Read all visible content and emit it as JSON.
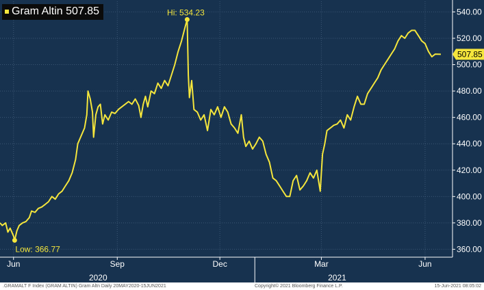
{
  "colors": {
    "background": "#17324f",
    "line": "#f5e63c",
    "grid": "#3b5674",
    "legend_bg": "#0b0b0b"
  },
  "chart_data": {
    "type": "line",
    "title": "",
    "xlabel": "",
    "ylabel": "",
    "ylim": [
      354,
      548
    ],
    "y_ticks": [
      "360.00",
      "380.00",
      "400.00",
      "420.00",
      "440.00",
      "460.00",
      "480.00",
      "500.00",
      "520.00",
      "540.00"
    ],
    "y_tick_values": [
      360,
      380,
      400,
      420,
      440,
      460,
      480,
      500,
      520,
      540
    ],
    "x_ticks": [
      {
        "label": "Jun",
        "date": "2020-06-01"
      },
      {
        "label": "Sep",
        "date": "2020-09-01"
      },
      {
        "label": "Dec",
        "date": "2020-12-01"
      },
      {
        "label": "Mar",
        "date": "2021-03-01"
      },
      {
        "label": "Jun",
        "date": "2021-06-01"
      }
    ],
    "year_labels": [
      {
        "label": "2020",
        "date": "2020-08-15"
      },
      {
        "label": "2021",
        "date": "2021-03-15"
      }
    ],
    "grid": true,
    "legend": "top-left",
    "series": [
      {
        "name": "Gram Altin",
        "last_value": "507.85",
        "points": [
          [
            "2020-05-20",
            380
          ],
          [
            "2020-05-22",
            378
          ],
          [
            "2020-05-25",
            380
          ],
          [
            "2020-05-27",
            373
          ],
          [
            "2020-05-29",
            376
          ],
          [
            "2020-06-01",
            370
          ],
          [
            "2020-06-02",
            366.77
          ],
          [
            "2020-06-04",
            374
          ],
          [
            "2020-06-06",
            378
          ],
          [
            "2020-06-09",
            380
          ],
          [
            "2020-06-12",
            381
          ],
          [
            "2020-06-15",
            384
          ],
          [
            "2020-06-17",
            389
          ],
          [
            "2020-06-20",
            388
          ],
          [
            "2020-06-23",
            391
          ],
          [
            "2020-06-26",
            392
          ],
          [
            "2020-06-29",
            394
          ],
          [
            "2020-07-02",
            396
          ],
          [
            "2020-07-05",
            400
          ],
          [
            "2020-07-08",
            398
          ],
          [
            "2020-07-11",
            402
          ],
          [
            "2020-07-14",
            404
          ],
          [
            "2020-07-17",
            408
          ],
          [
            "2020-07-20",
            412
          ],
          [
            "2020-07-23",
            418
          ],
          [
            "2020-07-26",
            428
          ],
          [
            "2020-07-28",
            440
          ],
          [
            "2020-07-30",
            444
          ],
          [
            "2020-08-01",
            448
          ],
          [
            "2020-08-03",
            452
          ],
          [
            "2020-08-05",
            462
          ],
          [
            "2020-08-06",
            480
          ],
          [
            "2020-08-08",
            474
          ],
          [
            "2020-08-10",
            464
          ],
          [
            "2020-08-11",
            445
          ],
          [
            "2020-08-13",
            462
          ],
          [
            "2020-08-15",
            468
          ],
          [
            "2020-08-17",
            470
          ],
          [
            "2020-08-19",
            455
          ],
          [
            "2020-08-21",
            462
          ],
          [
            "2020-08-24",
            458
          ],
          [
            "2020-08-27",
            464
          ],
          [
            "2020-08-30",
            463
          ],
          [
            "2020-09-02",
            466
          ],
          [
            "2020-09-05",
            468
          ],
          [
            "2020-09-08",
            470
          ],
          [
            "2020-09-11",
            472
          ],
          [
            "2020-09-14",
            470
          ],
          [
            "2020-09-17",
            474
          ],
          [
            "2020-09-20",
            469
          ],
          [
            "2020-09-22",
            460
          ],
          [
            "2020-09-24",
            470
          ],
          [
            "2020-09-26",
            476
          ],
          [
            "2020-09-28",
            468
          ],
          [
            "2020-10-01",
            480
          ],
          [
            "2020-10-04",
            478
          ],
          [
            "2020-10-07",
            486
          ],
          [
            "2020-10-10",
            482
          ],
          [
            "2020-10-13",
            488
          ],
          [
            "2020-10-16",
            484
          ],
          [
            "2020-10-19",
            492
          ],
          [
            "2020-10-22",
            500
          ],
          [
            "2020-10-25",
            510
          ],
          [
            "2020-10-28",
            518
          ],
          [
            "2020-10-31",
            528
          ],
          [
            "2020-11-02",
            534.23
          ],
          [
            "2020-11-03",
            492
          ],
          [
            "2020-11-04",
            475
          ],
          [
            "2020-11-06",
            488
          ],
          [
            "2020-11-08",
            466
          ],
          [
            "2020-11-11",
            464
          ],
          [
            "2020-11-14",
            458
          ],
          [
            "2020-11-17",
            462
          ],
          [
            "2020-11-20",
            450
          ],
          [
            "2020-11-23",
            466
          ],
          [
            "2020-11-26",
            462
          ],
          [
            "2020-11-29",
            468
          ],
          [
            "2020-12-02",
            460
          ],
          [
            "2020-12-05",
            468
          ],
          [
            "2020-12-08",
            464
          ],
          [
            "2020-12-11",
            455
          ],
          [
            "2020-12-14",
            452
          ],
          [
            "2020-12-17",
            448
          ],
          [
            "2020-12-20",
            462
          ],
          [
            "2020-12-22",
            445
          ],
          [
            "2020-12-24",
            438
          ],
          [
            "2020-12-27",
            442
          ],
          [
            "2020-12-30",
            436
          ],
          [
            "2021-01-02",
            440
          ],
          [
            "2021-01-05",
            445
          ],
          [
            "2021-01-08",
            442
          ],
          [
            "2021-01-11",
            432
          ],
          [
            "2021-01-14",
            426
          ],
          [
            "2021-01-17",
            414
          ],
          [
            "2021-01-20",
            412
          ],
          [
            "2021-01-23",
            408
          ],
          [
            "2021-01-26",
            404
          ],
          [
            "2021-01-29",
            400
          ],
          [
            "2021-02-01",
            400
          ],
          [
            "2021-02-04",
            412
          ],
          [
            "2021-02-07",
            416
          ],
          [
            "2021-02-10",
            405
          ],
          [
            "2021-02-13",
            408
          ],
          [
            "2021-02-16",
            412
          ],
          [
            "2021-02-19",
            418
          ],
          [
            "2021-02-22",
            414
          ],
          [
            "2021-02-25",
            420
          ],
          [
            "2021-02-28",
            404
          ],
          [
            "2021-03-02",
            432
          ],
          [
            "2021-03-04",
            440
          ],
          [
            "2021-03-06",
            450
          ],
          [
            "2021-03-09",
            452
          ],
          [
            "2021-03-12",
            454
          ],
          [
            "2021-03-15",
            455
          ],
          [
            "2021-03-18",
            458
          ],
          [
            "2021-03-21",
            452
          ],
          [
            "2021-03-24",
            462
          ],
          [
            "2021-03-27",
            458
          ],
          [
            "2021-03-30",
            468
          ],
          [
            "2021-04-02",
            476
          ],
          [
            "2021-04-05",
            470
          ],
          [
            "2021-04-08",
            470
          ],
          [
            "2021-04-11",
            478
          ],
          [
            "2021-04-14",
            482
          ],
          [
            "2021-04-17",
            486
          ],
          [
            "2021-04-20",
            490
          ],
          [
            "2021-04-23",
            496
          ],
          [
            "2021-04-26",
            500
          ],
          [
            "2021-04-29",
            504
          ],
          [
            "2021-05-02",
            508
          ],
          [
            "2021-05-05",
            512
          ],
          [
            "2021-05-08",
            518
          ],
          [
            "2021-05-11",
            522
          ],
          [
            "2021-05-14",
            520
          ],
          [
            "2021-05-17",
            524
          ],
          [
            "2021-05-20",
            526
          ],
          [
            "2021-05-23",
            526
          ],
          [
            "2021-05-26",
            522
          ],
          [
            "2021-05-29",
            518
          ],
          [
            "2021-06-01",
            516
          ],
          [
            "2021-06-04",
            510
          ],
          [
            "2021-06-07",
            506
          ],
          [
            "2021-06-10",
            508
          ],
          [
            "2021-06-15",
            507.85
          ]
        ]
      }
    ],
    "annotations": [
      {
        "label": "Hi: 534.23",
        "date": "2020-11-02",
        "value": 534.23
      },
      {
        "label": "Low: 366.77",
        "date": "2020-06-02",
        "value": 366.77
      }
    ]
  },
  "legend": {
    "label": "Gram Altin 507.85"
  },
  "footer": {
    "left": ".GRAMALT F Index (GRAM ALTIN) Gram Altn  Daily 20MAY2020-15JUN2021",
    "center": "Copyright© 2021 Bloomberg Finance L.P.",
    "right": "15-Jun-2021 08:05:02"
  }
}
